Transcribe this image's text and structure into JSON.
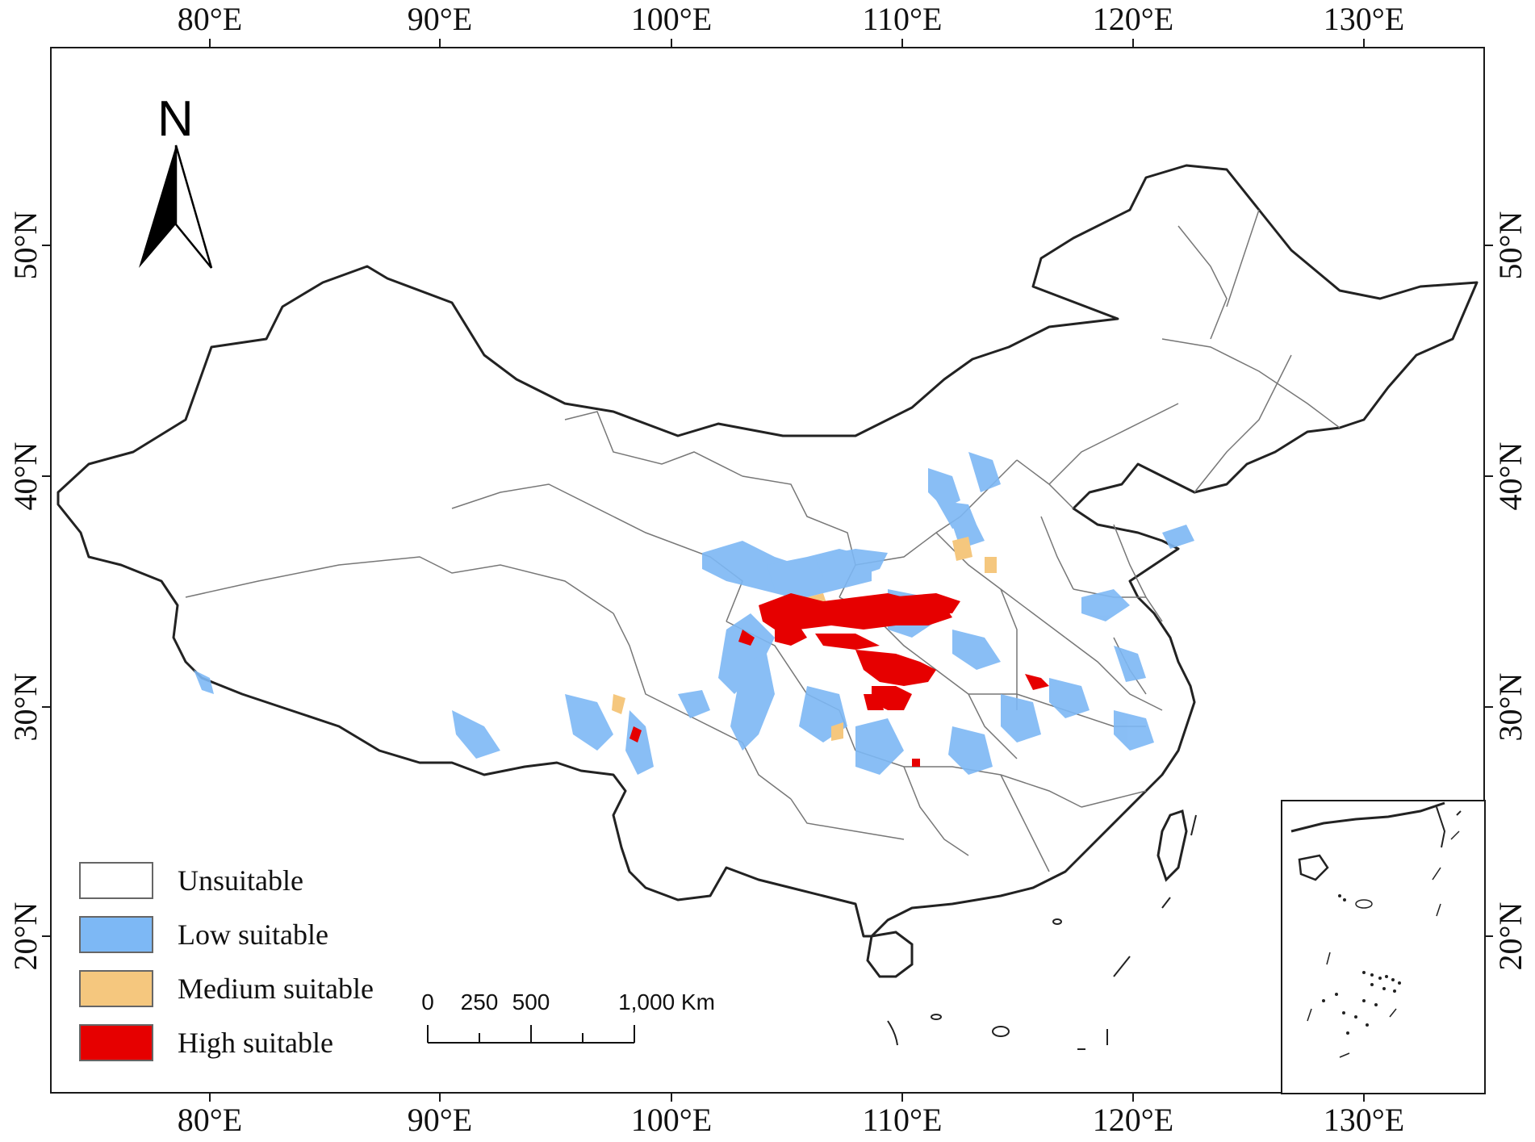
{
  "axes": {
    "longitude_labels": [
      "80°E",
      "90°E",
      "100°E",
      "110°E",
      "120°E",
      "130°E"
    ],
    "latitude_labels": [
      "50°N",
      "40°N",
      "30°N",
      "20°N"
    ]
  },
  "north_arrow": {
    "label": "N",
    "icon": "north-arrow-icon"
  },
  "legend": {
    "items": [
      {
        "label": "Unsuitable",
        "color": "#ffffff"
      },
      {
        "label": "Low suitable",
        "color": "#7db8f5"
      },
      {
        "label": "Medium suitable",
        "color": "#f5c77e"
      },
      {
        "label": "High suitable",
        "color": "#e60000"
      }
    ]
  },
  "scale_bar": {
    "labels": [
      "0",
      "250",
      "500",
      "1,000 Km"
    ]
  },
  "colors": {
    "border": "#1a1a1a",
    "province_line": "#777777",
    "low": "#7db8f5",
    "medium": "#f5c77e",
    "high": "#e60000"
  }
}
